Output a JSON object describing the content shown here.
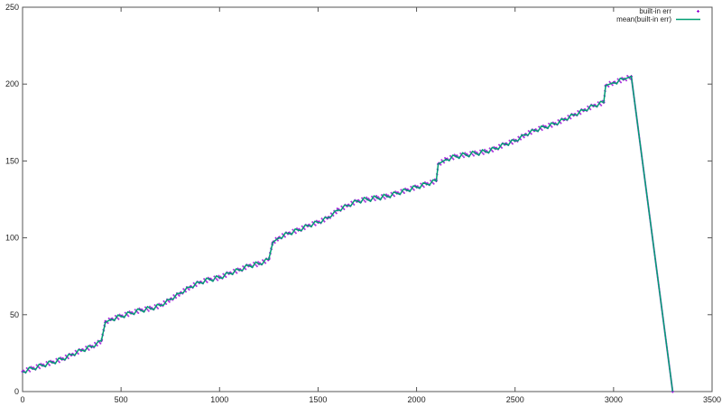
{
  "chart_data": {
    "type": "line",
    "title": "",
    "xlabel": "",
    "ylabel": "",
    "xlim": [
      0,
      3500
    ],
    "ylim": [
      0,
      250
    ],
    "xticks": [
      "0",
      "500",
      "1000",
      "1500",
      "2000",
      "2500",
      "3000",
      "3500"
    ],
    "yticks": [
      "0",
      "50",
      "100",
      "150",
      "200",
      "250"
    ],
    "grid": false,
    "legend_position": "top-right",
    "colors": {
      "points": "#9400d3",
      "line": "#009e73",
      "axis": "#555555"
    },
    "x": [
      0,
      50,
      100,
      150,
      200,
      250,
      300,
      350,
      400,
      420,
      450,
      500,
      550,
      600,
      650,
      700,
      750,
      800,
      850,
      900,
      950,
      1000,
      1050,
      1100,
      1150,
      1200,
      1250,
      1270,
      1300,
      1350,
      1400,
      1450,
      1500,
      1550,
      1600,
      1650,
      1700,
      1750,
      1800,
      1850,
      1900,
      1950,
      2000,
      2050,
      2100,
      2110,
      2150,
      2200,
      2250,
      2300,
      2350,
      2400,
      2450,
      2500,
      2550,
      2600,
      2650,
      2700,
      2750,
      2800,
      2850,
      2900,
      2950,
      2960,
      3000,
      3050,
      3090,
      3300
    ],
    "series": [
      {
        "name": "built-in err",
        "style": "points",
        "values": [
          13,
          15,
          17,
          19,
          21,
          24,
          27,
          29,
          33,
          45,
          47,
          49,
          51,
          53,
          54,
          56,
          60,
          64,
          68,
          71,
          73,
          74,
          77,
          79,
          82,
          83,
          86,
          97,
          100,
          103,
          105,
          108,
          110,
          113,
          118,
          121,
          124,
          125,
          126,
          127,
          129,
          131,
          133,
          135,
          137,
          148,
          151,
          153,
          154,
          155,
          156,
          158,
          161,
          163,
          167,
          170,
          172,
          174,
          177,
          180,
          183,
          186,
          188,
          199,
          201,
          203,
          205,
          0
        ]
      },
      {
        "name": "mean(built-in err)",
        "style": "line",
        "values": [
          13,
          15,
          17,
          19,
          21,
          24,
          27,
          29,
          33,
          45,
          47,
          49,
          51,
          53,
          54,
          56,
          60,
          64,
          68,
          71,
          73,
          74,
          77,
          79,
          82,
          83,
          86,
          97,
          100,
          103,
          105,
          108,
          110,
          113,
          118,
          121,
          124,
          125,
          126,
          127,
          129,
          131,
          133,
          135,
          137,
          148,
          151,
          153,
          154,
          155,
          156,
          158,
          161,
          163,
          167,
          170,
          172,
          174,
          177,
          180,
          183,
          186,
          188,
          199,
          201,
          203,
          205,
          0
        ]
      }
    ]
  }
}
